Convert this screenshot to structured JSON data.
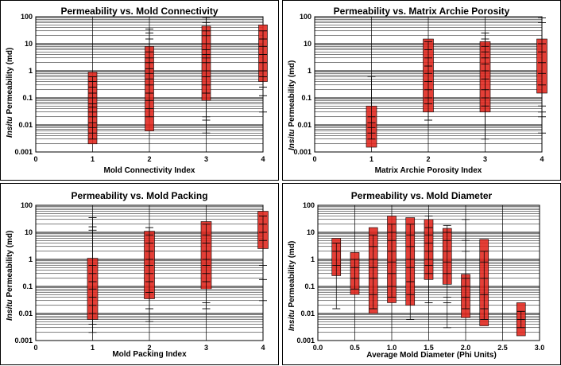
{
  "y_axis_label_prefix": "Insitu",
  "y_axis_label_suffix": " Permeability (md)",
  "chart_data": [
    {
      "type": "range-bar-scatter",
      "title": "Permeability vs. Mold Connectivity",
      "xlabel": "Mold Connectivity Index",
      "ylabel": "Insitu Permeability (md)",
      "xlim": [
        0,
        4
      ],
      "xticks": [
        "0",
        "1",
        "2",
        "3",
        "4"
      ],
      "ylim": [
        0.001,
        100
      ],
      "y_scale": "log",
      "yticks": [
        "0.001",
        "0.01",
        "0.1",
        "1",
        "10",
        "100"
      ],
      "grid": true,
      "bar_color": "#e0241b",
      "ranges": [
        {
          "x": 1,
          "low": 0.002,
          "high": 0.9
        },
        {
          "x": 2,
          "low": 0.006,
          "high": 8
        },
        {
          "x": 3,
          "low": 0.08,
          "high": 45
        },
        {
          "x": 4,
          "low": 0.4,
          "high": 50
        }
      ],
      "points": [
        {
          "x": 1,
          "y": [
            0.003,
            0.005,
            0.008,
            0.012,
            0.02,
            0.03,
            0.045,
            0.06,
            0.1,
            0.15,
            0.25,
            0.4,
            0.6
          ]
        },
        {
          "x": 2,
          "y": [
            0.02,
            0.04,
            0.08,
            0.15,
            0.3,
            0.5,
            0.8,
            1.2,
            2,
            3,
            5,
            15,
            25,
            35
          ]
        },
        {
          "x": 3,
          "y": [
            0.005,
            0.015,
            0.02,
            0.15,
            0.3,
            0.6,
            1,
            2,
            3,
            4,
            6,
            10,
            20,
            30,
            60,
            90
          ]
        },
        {
          "x": 4,
          "y": [
            0.03,
            0.12,
            0.25,
            0.6,
            1,
            2,
            4,
            8,
            15,
            30
          ]
        }
      ]
    },
    {
      "type": "range-bar-scatter",
      "title": "Permeability vs. Matrix Archie Porosity",
      "xlabel": "Matrix Archie Porosity Index",
      "ylabel": "Insitu Permeability (md)",
      "xlim": [
        0,
        4
      ],
      "xticks": [
        "0",
        "1",
        "2",
        "3",
        "4"
      ],
      "ylim": [
        0.001,
        100
      ],
      "y_scale": "log",
      "yticks": [
        "0.001",
        "0.01",
        "0.1",
        "1",
        "10",
        "100"
      ],
      "grid": true,
      "bar_color": "#e0241b",
      "ranges": [
        {
          "x": 1,
          "low": 0.0015,
          "high": 0.05
        },
        {
          "x": 2,
          "low": 0.03,
          "high": 15
        },
        {
          "x": 3,
          "low": 0.03,
          "high": 12
        },
        {
          "x": 4,
          "low": 0.15,
          "high": 15
        }
      ],
      "points": [
        {
          "x": 1,
          "y": [
            0.003,
            0.005,
            0.008,
            0.012,
            0.02,
            0.6
          ]
        },
        {
          "x": 2,
          "y": [
            0.015,
            0.06,
            0.1,
            0.2,
            0.4,
            0.8,
            1.5,
            3,
            6,
            12
          ]
        },
        {
          "x": 3,
          "y": [
            0.003,
            0.05,
            0.1,
            0.2,
            0.5,
            1,
            1.8,
            3,
            5,
            8,
            15,
            25
          ]
        },
        {
          "x": 4,
          "y": [
            0.005,
            0.02,
            0.03,
            0.05,
            0.3,
            0.8,
            2,
            5,
            10,
            60,
            90
          ]
        }
      ]
    },
    {
      "type": "range-bar-scatter",
      "title": "Permeability vs. Mold Packing",
      "xlabel": "Mold Packing Index",
      "ylabel": "Insitu Permeability (md)",
      "xlim": [
        0,
        4
      ],
      "xticks": [
        "0",
        "1",
        "2",
        "3",
        "4"
      ],
      "ylim": [
        0.001,
        100
      ],
      "y_scale": "log",
      "yticks": [
        "0.001",
        "0.01",
        "0.1",
        "1",
        "10",
        "100"
      ],
      "grid": true,
      "bar_color": "#e0241b",
      "ranges": [
        {
          "x": 1,
          "low": 0.006,
          "high": 1.1
        },
        {
          "x": 2,
          "low": 0.035,
          "high": 11
        },
        {
          "x": 3,
          "low": 0.08,
          "high": 25
        },
        {
          "x": 4,
          "low": 2.5,
          "high": 60
        }
      ],
      "points": [
        {
          "x": 1,
          "y": [
            0.002,
            0.004,
            0.01,
            0.02,
            0.04,
            0.08,
            0.15,
            0.3,
            0.6,
            12,
            16,
            35
          ]
        },
        {
          "x": 2,
          "y": [
            0.005,
            0.015,
            0.06,
            0.15,
            0.3,
            0.6,
            1,
            2,
            4,
            8,
            15
          ]
        },
        {
          "x": 3,
          "y": [
            0.015,
            0.025,
            0.15,
            0.3,
            0.6,
            1,
            2,
            4,
            8,
            20
          ]
        },
        {
          "x": 4,
          "y": [
            0.03,
            0.18,
            0.6,
            5,
            10,
            20,
            40
          ]
        }
      ]
    },
    {
      "type": "range-bar-scatter",
      "title": "Permeability vs. Mold Diameter",
      "xlabel": "Average Mold Diameter (Phi Units)",
      "ylabel": "Insitu Permeability (md)",
      "xlim": [
        0,
        3
      ],
      "xticks": [
        "0.0",
        "0.5",
        "1.0",
        "1.5",
        "2.0",
        "2.5",
        "3.0"
      ],
      "ylim": [
        0.001,
        100
      ],
      "y_scale": "log",
      "yticks": [
        "0.001",
        "0.01",
        "0.1",
        "1",
        "10",
        "100"
      ],
      "grid": true,
      "bar_color": "#e0241b",
      "ranges": [
        {
          "x": 0.25,
          "low": 0.25,
          "high": 6
        },
        {
          "x": 0.5,
          "low": 0.05,
          "high": 1.8
        },
        {
          "x": 0.75,
          "low": 0.01,
          "high": 15
        },
        {
          "x": 1.0,
          "low": 0.025,
          "high": 40
        },
        {
          "x": 1.25,
          "low": 0.02,
          "high": 35
        },
        {
          "x": 1.5,
          "low": 0.18,
          "high": 30
        },
        {
          "x": 1.75,
          "low": 0.12,
          "high": 14
        },
        {
          "x": 2.0,
          "low": 0.007,
          "high": 0.28
        },
        {
          "x": 2.25,
          "low": 0.0035,
          "high": 5.5
        },
        {
          "x": 2.75,
          "low": 0.0015,
          "high": 0.025
        }
      ],
      "points": [
        {
          "x": 0.25,
          "y": [
            0.015,
            0.6,
            2,
            4
          ]
        },
        {
          "x": 0.5,
          "y": [
            0.08,
            0.2,
            0.5,
            1
          ]
        },
        {
          "x": 0.75,
          "y": [
            0.015,
            0.05,
            0.2,
            0.5,
            1,
            3,
            8
          ]
        },
        {
          "x": 1.0,
          "y": [
            0.04,
            0.1,
            0.3,
            0.8,
            2,
            5,
            10,
            20
          ]
        },
        {
          "x": 1.25,
          "y": [
            0.006,
            0.05,
            0.15,
            0.5,
            1,
            3,
            8,
            20
          ]
        },
        {
          "x": 1.5,
          "y": [
            0.025,
            0.3,
            0.6,
            1,
            2,
            4,
            8,
            15,
            40
          ]
        },
        {
          "x": 1.75,
          "y": [
            0.003,
            0.025,
            0.04,
            0.3,
            0.8,
            2,
            5,
            10,
            18
          ]
        },
        {
          "x": 2.0,
          "y": [
            0.015,
            0.04,
            0.1,
            0.2,
            2,
            5,
            30
          ]
        },
        {
          "x": 2.25,
          "y": [
            0.006,
            0.015,
            0.05,
            0.2,
            0.8,
            2
          ]
        },
        {
          "x": 2.75,
          "y": [
            0.003,
            0.006,
            0.012
          ]
        }
      ]
    }
  ]
}
